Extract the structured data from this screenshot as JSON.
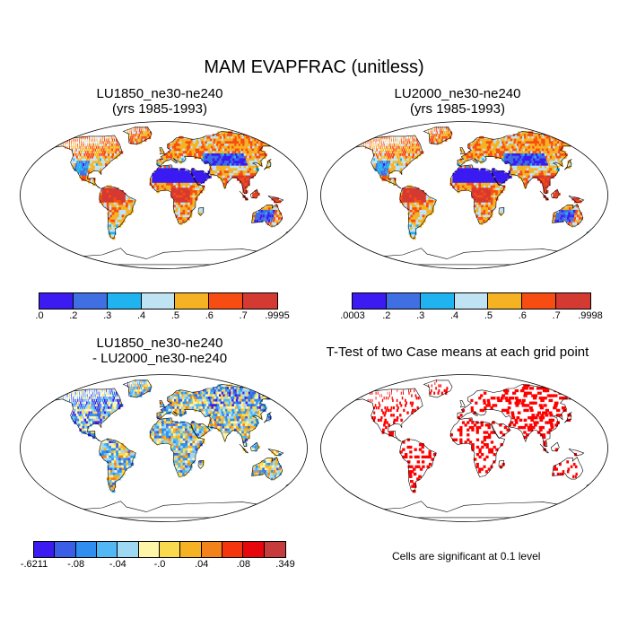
{
  "figure": {
    "title": "MAM EVAPFRAC (unitless)"
  },
  "panels": [
    {
      "id": "lu1850",
      "title_line1": "LU1850_ne30-ne240",
      "title_line2": "(yrs 1985-1993)",
      "colorbar": {
        "colors": [
          "#3b1bf2",
          "#3f6fe2",
          "#1fb3ef",
          "#bfe3f3",
          "#f5b324",
          "#f84d12",
          "#d43a32"
        ],
        "labels": [
          ".0",
          ".2",
          ".3",
          ".4",
          ".5",
          ".6",
          ".7",
          ".9995"
        ]
      }
    },
    {
      "id": "lu2000",
      "title_line1": "LU2000_ne30-ne240",
      "title_line2": "(yrs 1985-1993)",
      "colorbar": {
        "colors": [
          "#3b1bf2",
          "#3f6fe2",
          "#1fb3ef",
          "#bfe3f3",
          "#f5b324",
          "#f84d12",
          "#d43a32"
        ],
        "labels": [
          ".0003",
          ".2",
          ".3",
          ".4",
          ".5",
          ".6",
          ".7",
          ".9998"
        ]
      }
    },
    {
      "id": "difference",
      "title_line1": "LU1850_ne30-ne240",
      "title_line2": "- LU2000_ne30-ne240",
      "colorbar": {
        "colors": [
          "#3b1bf2",
          "#3b5ee6",
          "#2f8ef0",
          "#52b7f5",
          "#9fd8f3",
          "#fff5a8",
          "#f9d94d",
          "#f5b324",
          "#f3821a",
          "#f4360f",
          "#e6060c",
          "#c63b3b"
        ],
        "labels": [
          "-.6211",
          "-.08",
          "-.04",
          "-.0",
          ".04",
          ".08",
          ".349"
        ]
      }
    },
    {
      "id": "ttest",
      "title_line1": "T-Test of two Case means at each grid point",
      "note": "Cells are significant at 0.1 level",
      "significant_color": "#ff0000"
    }
  ]
}
